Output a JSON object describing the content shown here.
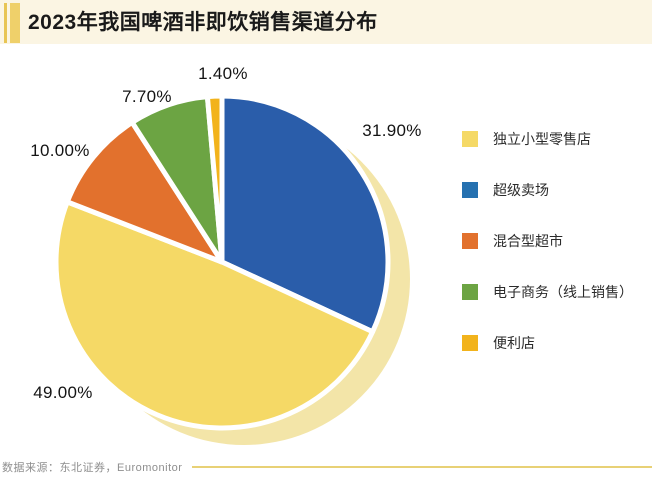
{
  "title": "2023年我国啤酒非即饮销售渠道分布",
  "source": "数据来源：东北证券，Euromonitor",
  "theme": {
    "title_band_bg": "#FBF5E3",
    "accent_bar_thin": "#E8C554",
    "accent_bar_thick": "#EFD06A",
    "source_line_color": "#E8D176",
    "pie_shadow_color": "#F3E5A8"
  },
  "chart_data": {
    "type": "pie",
    "title": "2023年我国啤酒非即饮销售渠道分布",
    "unit": "%",
    "start_angle": "12 o'clock",
    "direction": "clockwise",
    "legend_position": "right",
    "slices": [
      {
        "name": "超级卖场",
        "value": 31.9,
        "label": "31.90%",
        "color": "#2A5DAA"
      },
      {
        "name": "独立小型零售店",
        "value": 49.0,
        "label": "49.00%",
        "color": "#F5D966"
      },
      {
        "name": "混合型超市",
        "value": 10.0,
        "label": "10.00%",
        "color": "#E2712D"
      },
      {
        "name": "电子商务（线上销售）",
        "value": 7.7,
        "label": "7.70%",
        "color": "#6CA443"
      },
      {
        "name": "便利店",
        "value": 1.4,
        "label": "1.40%",
        "color": "#F2B31C"
      }
    ],
    "legend": [
      {
        "label": "独立小型零售店",
        "color": "#F5D966"
      },
      {
        "label": "超级卖场",
        "color": "#2571B0"
      },
      {
        "label": "混合型超市",
        "color": "#E2712D"
      },
      {
        "label": "电子商务（线上销售）",
        "color": "#6CA443"
      },
      {
        "label": "便利店",
        "color": "#F2B31C"
      }
    ]
  }
}
